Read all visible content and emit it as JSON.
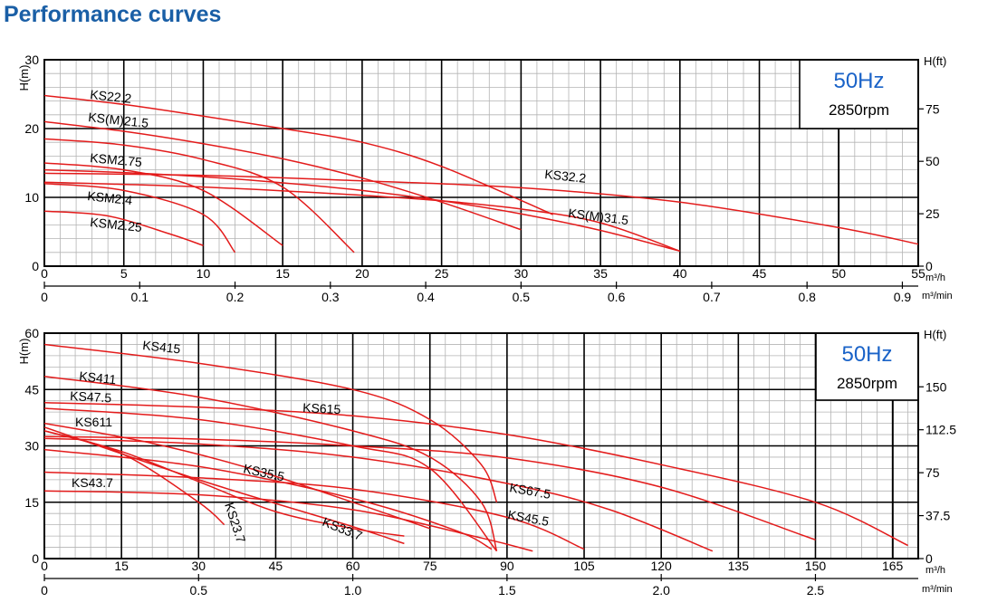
{
  "title": "Performance curves",
  "chart_data": [
    {
      "type": "line",
      "frequency_label": "50Hz",
      "speed_label": "2850rpm",
      "ylabel": "H(m)",
      "ylabel_right": "H(ft)",
      "xlabel": "m³/h",
      "xlabel2": "m³/min",
      "xlim": [
        0,
        55
      ],
      "ylim": [
        0,
        30
      ],
      "xticks": [
        0,
        5,
        10,
        15,
        20,
        25,
        30,
        35,
        40,
        45,
        50,
        55
      ],
      "yticks": [
        0,
        10,
        20,
        30
      ],
      "xticks2": [
        "0",
        "0.1",
        "0.2",
        "0.3",
        "0.4",
        "0.5",
        "0.6",
        "0.7",
        "0.8",
        "0.9"
      ],
      "xticks2_values": [
        0,
        0.1,
        0.2,
        0.3,
        0.4,
        0.5,
        0.6,
        0.7,
        0.8,
        0.9
      ],
      "yticks_right": [
        "0",
        "25",
        "50",
        "75"
      ],
      "yticks_right_values": [
        0,
        25,
        50,
        75
      ],
      "grid": true,
      "series": [
        {
          "name": "KS22.2",
          "x": [
            0,
            5,
            10,
            15,
            20,
            25,
            32
          ],
          "y": [
            24.8,
            23.5,
            21.8,
            20,
            18,
            14.5,
            7.5
          ]
        },
        {
          "name": "KS(M)21.5",
          "x": [
            0,
            5,
            10,
            15,
            20,
            25,
            30
          ],
          "y": [
            21,
            19.6,
            17.8,
            15.6,
            12.8,
            9.3,
            5.3
          ]
        },
        {
          "name": "",
          "x": [
            0,
            5,
            10,
            15,
            19.5
          ],
          "y": [
            18.5,
            17.6,
            15.5,
            11.5,
            2
          ]
        },
        {
          "name": "KSM2.75",
          "x": [
            0,
            5,
            10,
            15
          ],
          "y": [
            15,
            14,
            11,
            3
          ]
        },
        {
          "name": "",
          "x": [
            0,
            5,
            10,
            15,
            20,
            25,
            30,
            35,
            40
          ],
          "y": [
            14,
            13.6,
            13,
            12.1,
            11,
            9.5,
            7.6,
            5.2,
            2.2
          ]
        },
        {
          "name": "KS32.2",
          "x": [
            0,
            10,
            20,
            30,
            40,
            50,
            55
          ],
          "y": [
            13.5,
            13.2,
            12.4,
            11.4,
            9.3,
            5.6,
            3.2
          ]
        },
        {
          "name": "KS(M)31.5",
          "x": [
            0,
            10,
            20,
            25,
            30,
            35,
            40
          ],
          "y": [
            12.2,
            11.5,
            10.3,
            9.5,
            8.3,
            6.3,
            2.2
          ]
        },
        {
          "name": "KSM2.4",
          "x": [
            0,
            5,
            10,
            12
          ],
          "y": [
            12,
            11,
            7.5,
            2
          ]
        },
        {
          "name": "KSM2.25",
          "x": [
            0,
            4,
            8,
            10
          ],
          "y": [
            8,
            7.3,
            4.6,
            3
          ]
        }
      ]
    },
    {
      "type": "line",
      "frequency_label": "50Hz",
      "speed_label": "2850rpm",
      "ylabel": "H(m)",
      "ylabel_right": "H(ft)",
      "xlabel": "m³/h",
      "xlabel2": "m³/min",
      "xlim": [
        0,
        170
      ],
      "ylim": [
        0,
        60
      ],
      "xticks": [
        0,
        15,
        30,
        45,
        60,
        75,
        90,
        105,
        120,
        135,
        150,
        165
      ],
      "yticks": [
        0,
        15,
        30,
        45,
        60
      ],
      "xticks2": [
        "0",
        "0.5",
        "1.0",
        "1.5",
        "2.0",
        "2.5"
      ],
      "xticks2_values": [
        0,
        0.5,
        1.0,
        1.5,
        2.0,
        2.5
      ],
      "yticks_right": [
        "0",
        "37.5",
        "75",
        "112.5",
        "150"
      ],
      "yticks_right_values": [
        0,
        37.5,
        75,
        112.5,
        150
      ],
      "grid": true,
      "series": [
        {
          "name": "KS415",
          "x": [
            0,
            30,
            60,
            75,
            85,
            88
          ],
          "y": [
            57,
            52,
            45,
            37,
            25,
            15
          ]
        },
        {
          "name": "KS411",
          "x": [
            0,
            30,
            60,
            75,
            85,
            88
          ],
          "y": [
            48.5,
            43,
            34,
            27,
            15,
            2
          ]
        },
        {
          "name": "KS615",
          "x": [
            0,
            30,
            60,
            90,
            120,
            150,
            168
          ],
          "y": [
            41.5,
            40.3,
            38,
            33,
            25,
            15,
            3.5
          ]
        },
        {
          "name": "KS47.5",
          "x": [
            0,
            30,
            60,
            75,
            88
          ],
          "y": [
            40,
            37,
            30,
            24,
            2
          ]
        },
        {
          "name": "KS611",
          "x": [
            0,
            30,
            60,
            90,
            120,
            150
          ],
          "y": [
            32.5,
            31.8,
            30,
            26.8,
            19,
            5
          ]
        },
        {
          "name": "KS67.5",
          "x": [
            0,
            30,
            60,
            90,
            110,
            130
          ],
          "y": [
            32,
            30.5,
            27,
            20,
            13,
            2
          ]
        },
        {
          "name": "",
          "x": [
            0,
            15,
            30,
            45,
            60,
            70
          ],
          "y": [
            34,
            28.5,
            20.5,
            12.5,
            8,
            6
          ]
        },
        {
          "name": "KS35.5",
          "x": [
            0,
            30,
            60,
            80,
            87
          ],
          "y": [
            29,
            24.5,
            16,
            7.5,
            2.5
          ]
        },
        {
          "name": "KS45.5",
          "x": [
            0,
            30,
            60,
            90,
            105
          ],
          "y": [
            23,
            21.5,
            18.5,
            11,
            2.5
          ]
        },
        {
          "name": "KS43.7",
          "x": [
            0,
            30,
            60,
            85,
            95
          ],
          "y": [
            18,
            17,
            13,
            5.5,
            2
          ]
        },
        {
          "name": "",
          "x": [
            0,
            20,
            40,
            60,
            75
          ],
          "y": [
            36,
            31,
            24,
            15,
            8
          ]
        },
        {
          "name": "KS33.7",
          "x": [
            0,
            30,
            60,
            70
          ],
          "y": [
            35,
            21,
            8.5,
            4
          ]
        },
        {
          "name": "KS23.7",
          "x": [
            0,
            15,
            30,
            35
          ],
          "y": [
            34,
            28,
            15,
            9
          ]
        }
      ]
    }
  ]
}
